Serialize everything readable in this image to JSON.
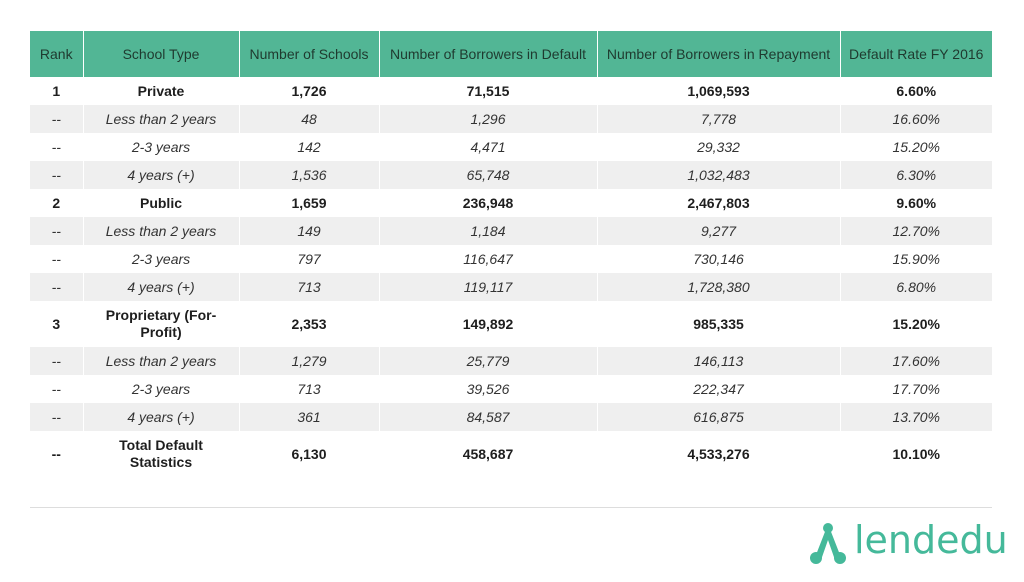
{
  "table": {
    "headers": [
      "Rank",
      "School Type",
      "Number of Schools",
      "Number of Borrowers in Default",
      "Number of Borrowers in Repayment",
      "Default Rate FY 2016"
    ],
    "rows": [
      {
        "style": "bold",
        "cells": [
          "1",
          "Private",
          "1,726",
          "71,515",
          "1,069,593",
          "6.60%"
        ]
      },
      {
        "style": "sub shade",
        "cells": [
          "--",
          "Less than 2 years",
          "48",
          "1,296",
          "7,778",
          "16.60%"
        ]
      },
      {
        "style": "sub",
        "cells": [
          "--",
          "2-3 years",
          "142",
          "4,471",
          "29,332",
          "15.20%"
        ]
      },
      {
        "style": "sub shade",
        "cells": [
          "--",
          "4 years (+)",
          "1,536",
          "65,748",
          "1,032,483",
          "6.30%"
        ]
      },
      {
        "style": "bold",
        "cells": [
          "2",
          "Public",
          "1,659",
          "236,948",
          "2,467,803",
          "9.60%"
        ]
      },
      {
        "style": "sub shade",
        "cells": [
          "--",
          "Less than 2 years",
          "149",
          "1,184",
          "9,277",
          "12.70%"
        ]
      },
      {
        "style": "sub",
        "cells": [
          "--",
          "2-3 years",
          "797",
          "116,647",
          "730,146",
          "15.90%"
        ]
      },
      {
        "style": "sub shade",
        "cells": [
          "--",
          "4 years (+)",
          "713",
          "119,117",
          "1,728,380",
          "6.80%"
        ]
      },
      {
        "style": "bold tall",
        "cells": [
          "3",
          "Proprietary (For-Profit)",
          "2,353",
          "149,892",
          "985,335",
          "15.20%"
        ]
      },
      {
        "style": "sub shade",
        "cells": [
          "--",
          "Less than 2 years",
          "1,279",
          "25,779",
          "146,113",
          "17.60%"
        ]
      },
      {
        "style": "sub",
        "cells": [
          "--",
          "2-3 years",
          "713",
          "39,526",
          "222,347",
          "17.70%"
        ]
      },
      {
        "style": "sub shade",
        "cells": [
          "--",
          "4 years (+)",
          "361",
          "84,587",
          "616,875",
          "13.70%"
        ]
      },
      {
        "style": "bold tall",
        "cells": [
          "--",
          "Total Default Statistics",
          "6,130",
          "458,687",
          "4,533,276",
          "10.10%"
        ]
      }
    ]
  },
  "logo": {
    "text": "lendedu",
    "icon": "lendedu-logo-icon",
    "color": "#45b99a"
  },
  "colors": {
    "header_bg": "#52b695",
    "row_shade": "#efefef"
  }
}
